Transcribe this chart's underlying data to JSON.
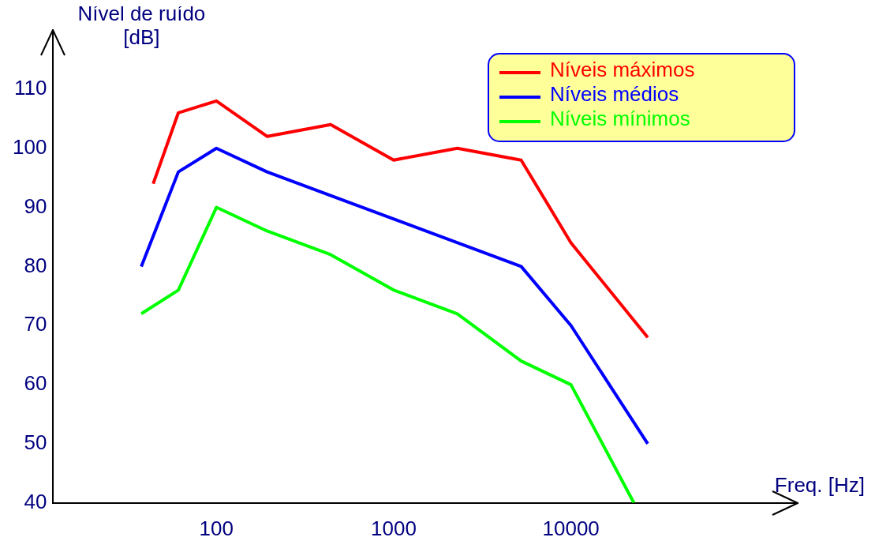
{
  "chart_data": {
    "type": "line",
    "xlabel": "Freq. [Hz]",
    "ylabel": "Nível de ruído\n[dB]",
    "log": "x",
    "xlim": [
      12,
      190000
    ],
    "xticks": [
      100,
      1000,
      10000
    ],
    "ylim": [
      40,
      120
    ],
    "yticks": [
      40,
      50,
      60,
      70,
      80,
      90,
      100,
      110
    ],
    "grid": false,
    "legend": "top right",
    "marker": "none",
    "line_style": "solid",
    "series": [
      {
        "name": "Níveis máximos",
        "color": "#ff0000",
        "x": [
          44,
          61,
          100,
          193,
          441,
          1000,
          2286,
          5236,
          10000,
          27100
        ],
        "values": [
          94,
          106,
          108,
          102,
          104,
          98,
          100,
          98,
          84,
          68
        ]
      },
      {
        "name": "Níveis médios",
        "color": "#0000ff",
        "x": [
          37.7,
          61,
          100,
          193,
          5236,
          10000,
          27100
        ],
        "values": [
          80,
          96,
          100,
          96,
          80,
          70,
          50
        ]
      },
      {
        "name": "Níveis mínimos",
        "color": "#00ff00",
        "x": [
          37.7,
          61,
          100,
          193,
          441,
          1000,
          2286,
          5236,
          10000,
          22650
        ],
        "values": [
          72,
          76,
          90,
          86,
          82,
          76,
          72,
          64,
          60,
          40
        ]
      }
    ]
  }
}
